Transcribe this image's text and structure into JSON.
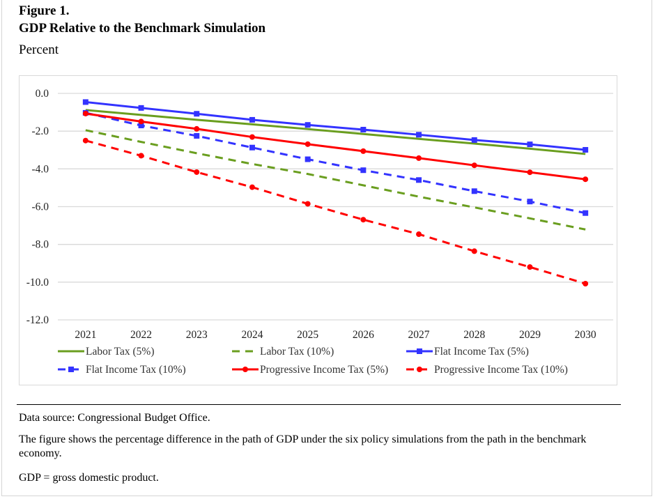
{
  "figure": {
    "label": "Figure 1.",
    "title": "GDP Relative to the Benchmark Simulation",
    "units": "Percent"
  },
  "notes": {
    "source": "Data source: Congressional Budget Office.",
    "description": "The figure shows the percentage difference in the path of GDP under the six policy simulations from the path in the benchmark economy.",
    "abbreviation": "GDP = gross domestic product."
  },
  "chart_data": {
    "type": "line",
    "title": "GDP Relative to the Benchmark Simulation",
    "xlabel": "",
    "ylabel": "Percent",
    "x": [
      "2021",
      "2022",
      "2023",
      "2024",
      "2025",
      "2026",
      "2027",
      "2028",
      "2029",
      "2030"
    ],
    "ylim": [
      -12.0,
      0.0
    ],
    "yticks": [
      "0.0",
      "-2.0",
      "-4.0",
      "-6.0",
      "-8.0",
      "-10.0",
      "-12.0"
    ],
    "ytick_values": [
      0,
      -2,
      -4,
      -6,
      -8,
      -10,
      -12
    ],
    "grid": true,
    "legend_position": "bottom",
    "series": [
      {
        "name": "Labor Tax (5%)",
        "color": "#6a9e1f",
        "dash": "solid",
        "marker": "none",
        "values": [
          -0.88,
          -1.14,
          -1.4,
          -1.64,
          -1.89,
          -2.15,
          -2.41,
          -2.66,
          -2.93,
          -3.21
        ]
      },
      {
        "name": "Labor Tax (10%)",
        "color": "#6a9e1f",
        "dash": "dashed",
        "marker": "none",
        "values": [
          -1.95,
          -2.57,
          -3.17,
          -3.74,
          -4.27,
          -4.87,
          -5.47,
          -6.04,
          -6.62,
          -7.21
        ]
      },
      {
        "name": "Flat Income Tax (5%)",
        "color": "#3333ff",
        "dash": "solid",
        "marker": "square",
        "values": [
          -0.46,
          -0.77,
          -1.08,
          -1.4,
          -1.67,
          -1.92,
          -2.19,
          -2.47,
          -2.7,
          -2.99
        ]
      },
      {
        "name": "Flat Income Tax (10%)",
        "color": "#3333ff",
        "dash": "dashed",
        "marker": "square",
        "values": [
          -1.03,
          -1.7,
          -2.25,
          -2.87,
          -3.49,
          -4.07,
          -4.59,
          -5.18,
          -5.73,
          -6.34
        ]
      },
      {
        "name": "Progressive Income Tax (5%)",
        "color": "#ff0000",
        "dash": "solid",
        "marker": "circle",
        "values": [
          -1.07,
          -1.49,
          -1.88,
          -2.31,
          -2.69,
          -3.06,
          -3.43,
          -3.81,
          -4.18,
          -4.55
        ]
      },
      {
        "name": "Progressive Income Tax (10%)",
        "color": "#ff0000",
        "dash": "dashed",
        "marker": "circle",
        "values": [
          -2.5,
          -3.3,
          -4.17,
          -4.97,
          -5.85,
          -6.69,
          -7.46,
          -8.36,
          -9.2,
          -10.08
        ]
      }
    ]
  }
}
